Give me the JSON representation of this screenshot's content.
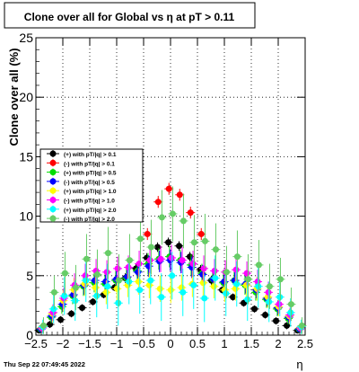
{
  "chart_data": {
    "type": "scatter",
    "title": "Clone  over all for Global vs    η at pT > 0.11",
    "xlabel": "η",
    "ylabel": "Clone  over all (%)",
    "xlim": [
      -2.5,
      2.5
    ],
    "ylim": [
      0,
      25
    ],
    "x_ticks": [
      "−2.5",
      "−2",
      "−1.5",
      "−1",
      "−0.5",
      "0",
      "0.5",
      "1",
      "1.5",
      "2",
      "2.5"
    ],
    "y_ticks": [
      "0",
      "5",
      "10",
      "15",
      "20",
      "25"
    ],
    "grid": true,
    "legend_position": "left-middle",
    "footer_timestamp": "Thu Sep 22 07:49:45 2022",
    "x": [
      -2.4,
      -2.2,
      -2.0,
      -1.8,
      -1.6,
      -1.4,
      -1.2,
      -1.0,
      -0.8,
      -0.6,
      -0.4,
      -0.2,
      0.0,
      0.2,
      0.4,
      0.6,
      0.8,
      1.0,
      1.2,
      1.4,
      1.6,
      1.8,
      2.0,
      2.2,
      2.4
    ],
    "series": [
      {
        "name": "(+) with pT/|q| > 0.1",
        "color": "#000000",
        "marker": "circle",
        "values": [
          0.4,
          0.9,
          1.3,
          1.8,
          2.3,
          2.8,
          3.4,
          4.0,
          4.8,
          5.6,
          6.5,
          7.4,
          7.8,
          7.5,
          6.6,
          5.5,
          4.6,
          3.8,
          3.2,
          2.7,
          2.2,
          1.7,
          1.2,
          0.8,
          0.4
        ],
        "errors": [
          0.2,
          0.3,
          0.3,
          0.3,
          0.3,
          0.3,
          0.3,
          0.3,
          0.4,
          0.4,
          0.4,
          0.4,
          0.4,
          0.4,
          0.4,
          0.4,
          0.4,
          0.3,
          0.3,
          0.3,
          0.3,
          0.3,
          0.3,
          0.3,
          0.2
        ]
      },
      {
        "name": "(-) with pT/|q| > 0.1",
        "color": "#ff0000",
        "marker": "circle",
        "values": [
          null,
          null,
          null,
          null,
          null,
          null,
          null,
          null,
          null,
          null,
          8.5,
          11.2,
          12.3,
          11.8,
          10.3,
          8.5,
          null,
          null,
          null,
          null,
          null,
          null,
          null,
          null,
          null
        ],
        "errors": [
          0,
          0,
          0,
          0,
          0,
          0,
          0,
          0,
          0,
          0,
          0.5,
          0.5,
          0.5,
          0.5,
          0.5,
          0.5,
          0,
          0,
          0,
          0,
          0,
          0,
          0,
          0,
          0
        ]
      },
      {
        "name": "(+) with pT/|q| > 0.5",
        "color": "#00dd00",
        "marker": "circle",
        "values": [
          0.5,
          1.5,
          2.4,
          3.3,
          4.1,
          4.4,
          4.3,
          4.6,
          4.8,
          5.4,
          6.0,
          6.4,
          6.6,
          6.3,
          5.9,
          5.2,
          4.7,
          4.4,
          4.6,
          4.2,
          3.6,
          3.0,
          2.2,
          1.4,
          0.5
        ],
        "errors": [
          0.3,
          0.5,
          0.6,
          0.7,
          0.8,
          0.8,
          0.8,
          0.8,
          0.8,
          0.8,
          0.9,
          0.9,
          0.9,
          0.9,
          0.9,
          0.8,
          0.8,
          0.8,
          0.8,
          0.8,
          0.7,
          0.7,
          0.6,
          0.5,
          0.3
        ]
      },
      {
        "name": "(-) with pT/|q| > 0.5",
        "color": "#0000ff",
        "marker": "circle",
        "values": [
          0.5,
          1.6,
          2.6,
          3.4,
          4.2,
          4.6,
          4.5,
          4.7,
          4.9,
          5.3,
          5.8,
          6.2,
          6.3,
          6.1,
          5.7,
          5.1,
          4.7,
          4.5,
          4.6,
          4.3,
          3.8,
          3.1,
          2.3,
          1.5,
          0.5
        ],
        "errors": [
          0.3,
          0.5,
          0.6,
          0.7,
          0.8,
          0.8,
          0.8,
          0.8,
          0.8,
          0.8,
          0.9,
          0.9,
          0.9,
          0.9,
          0.9,
          0.8,
          0.8,
          0.8,
          0.8,
          0.8,
          0.7,
          0.7,
          0.6,
          0.5,
          0.3
        ]
      },
      {
        "name": "(+) with pT/|q| > 1.0",
        "color": "#ffff00",
        "marker": "circle",
        "values": [
          0.6,
          1.8,
          2.9,
          3.8,
          4.3,
          4.0,
          3.6,
          3.9,
          4.2,
          4.5,
          4.2,
          3.9,
          3.8,
          4.0,
          4.3,
          4.4,
          4.1,
          3.8,
          3.9,
          4.2,
          3.9,
          3.2,
          2.4,
          1.6,
          0.6
        ],
        "errors": [
          0.4,
          0.7,
          0.9,
          1.0,
          1.0,
          1.0,
          1.0,
          1.0,
          1.0,
          1.1,
          1.1,
          1.1,
          1.1,
          1.1,
          1.1,
          1.1,
          1.0,
          1.0,
          1.0,
          1.0,
          1.0,
          0.9,
          0.8,
          0.6,
          0.4
        ]
      },
      {
        "name": "(-) with pT/|q| > 1.0",
        "color": "#ff00ff",
        "marker": "circle",
        "values": [
          0.6,
          1.9,
          3.1,
          4.2,
          5.0,
          5.4,
          5.3,
          5.6,
          5.7,
          6.0,
          6.3,
          6.4,
          6.5,
          6.3,
          6.0,
          5.6,
          5.4,
          5.3,
          5.5,
          5.2,
          4.5,
          3.6,
          2.6,
          1.7,
          0.6
        ],
        "errors": [
          0.4,
          0.7,
          0.9,
          1.0,
          1.0,
          1.0,
          1.0,
          1.0,
          1.0,
          1.1,
          1.1,
          1.1,
          1.1,
          1.1,
          1.1,
          1.1,
          1.0,
          1.0,
          1.0,
          1.0,
          1.0,
          0.9,
          0.8,
          0.6,
          0.4
        ]
      },
      {
        "name": "(+) with pT/|q| > 2.0",
        "color": "#00ffff",
        "marker": "circle",
        "values": [
          0.7,
          2.2,
          3.3,
          2.9,
          4.6,
          3.3,
          4.1,
          2.7,
          4.5,
          3.8,
          4.6,
          3.2,
          5.0,
          3.6,
          4.2,
          3.1,
          4.8,
          3.5,
          4.3,
          3.0,
          4.1,
          2.8,
          3.2,
          1.9,
          0.7
        ],
        "errors": [
          0.6,
          1.2,
          1.6,
          1.7,
          1.8,
          1.8,
          1.9,
          1.9,
          1.9,
          2.0,
          2.0,
          2.0,
          2.0,
          2.0,
          2.0,
          2.0,
          1.9,
          1.9,
          1.9,
          1.8,
          1.8,
          1.7,
          1.6,
          1.2,
          0.6
        ]
      },
      {
        "name": "(-) with pT/|q| > 2.0",
        "color": "#66cc66",
        "marker": "circle",
        "values": [
          0.8,
          3.6,
          5.2,
          4.0,
          6.4,
          5.1,
          6.9,
          4.6,
          6.3,
          8.1,
          7.4,
          9.9,
          10.2,
          9.6,
          7.8,
          7.9,
          7.2,
          5.3,
          6.6,
          4.7,
          5.9,
          4.1,
          4.7,
          2.6,
          0.8
        ],
        "errors": [
          0.7,
          1.4,
          1.8,
          1.9,
          2.1,
          2.1,
          2.2,
          2.2,
          2.2,
          2.3,
          2.3,
          2.3,
          2.3,
          2.3,
          2.3,
          2.3,
          2.2,
          2.2,
          2.2,
          2.1,
          2.1,
          1.9,
          1.8,
          1.4,
          0.7
        ]
      }
    ]
  }
}
